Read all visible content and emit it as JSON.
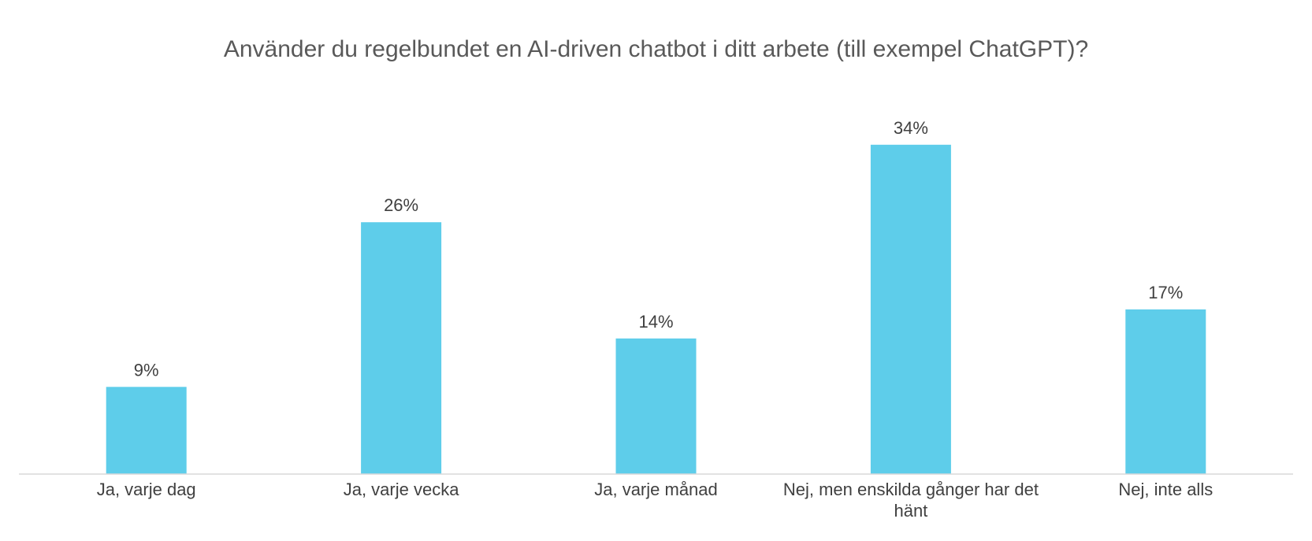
{
  "chart_data": {
    "type": "bar",
    "title": "Använder du regelbundet en AI-driven chatbot i ditt arbete (till exempel ChatGPT)?",
    "categories": [
      "Ja, varje dag",
      "Ja, varje vecka",
      "Ja, varje månad",
      "Nej, men enskilda gånger har det hänt",
      "Nej, inte alls"
    ],
    "values": [
      9,
      26,
      14,
      34,
      17
    ],
    "value_labels": [
      "9%",
      "26%",
      "14%",
      "34%",
      "17%"
    ],
    "xlabel": "",
    "ylabel": "",
    "ylim": [
      0,
      40
    ],
    "grid": false,
    "legend": "none",
    "bar_color": "#5ECDEA",
    "axis_color": "#D9D9D9",
    "text_color": "#404040",
    "title_color": "#595959"
  }
}
